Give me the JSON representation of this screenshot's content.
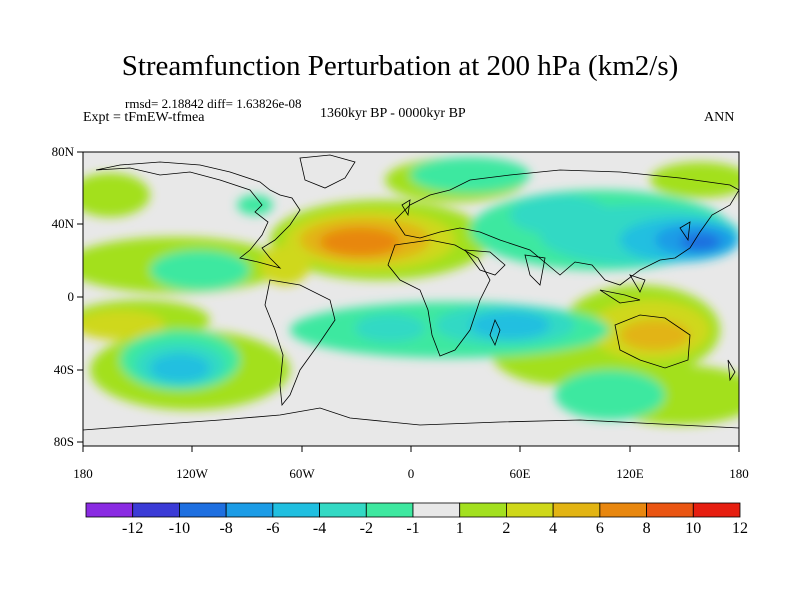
{
  "header": {
    "title": "Streamfunction Perturbation at 200 hPa (km2/s)",
    "stats": "rmsd= 2.18842 diff= 1.63826e-08",
    "experiment": "Expt = tFmEW-tfmea",
    "period": "1360kyr BP - 0000kyr BP",
    "season": "ANN"
  },
  "map": {
    "lon_labels": [
      "180",
      "120W",
      "60W",
      "0",
      "60E",
      "120E",
      "180"
    ],
    "lat_labels": [
      "80N",
      "40N",
      "0",
      "40S",
      "80S"
    ],
    "colorbar_labels": [
      "-12",
      "-10",
      "-8",
      "-6",
      "-4",
      "-2",
      "-1",
      "1",
      "2",
      "4",
      "6",
      "8",
      "10",
      "12"
    ],
    "colorbar_colors": [
      "#8a2be2",
      "#3b3bd6",
      "#1e6fe0",
      "#1c9ce6",
      "#20bfe0",
      "#33d9c4",
      "#3ee8a0",
      "#e8e8e8",
      "#a3e01f",
      "#cfd81a",
      "#e2b413",
      "#e8870f",
      "#ea5512",
      "#e61e10"
    ],
    "ocean_color": "#e8e8e8",
    "contour_levels": [
      -12,
      -10,
      -8,
      -6,
      -4,
      -2,
      -1,
      1,
      2,
      4,
      6,
      8,
      10,
      12
    ]
  }
}
